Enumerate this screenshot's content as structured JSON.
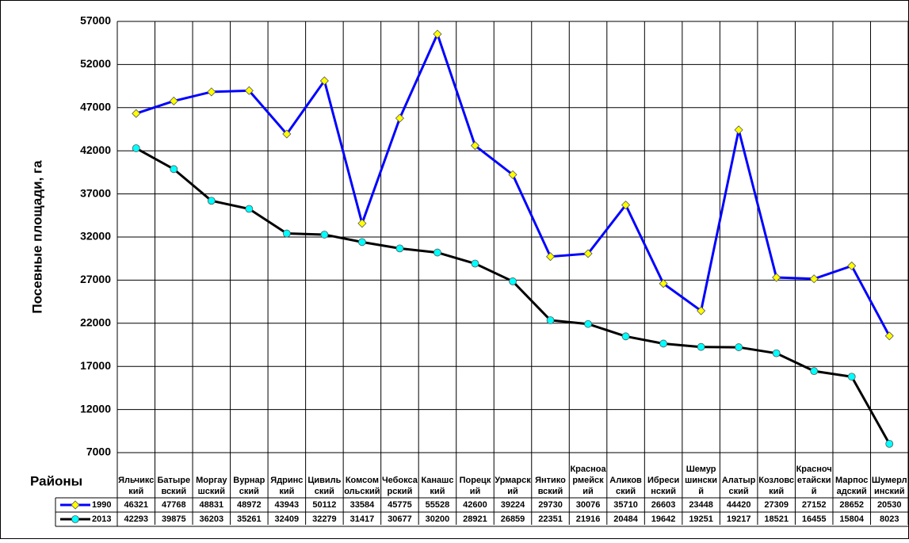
{
  "chart_data": {
    "type": "line",
    "y_label": "Посевные площади, га",
    "x_label": "Районы",
    "categories": [
      "Яльчикский",
      "Батыревский",
      "Моргаушский",
      "Вурнарский",
      "Ядринский",
      "Цивильский",
      "Комсомольский",
      "Чебоксарский",
      "Канашский",
      "Порецкий",
      "Урмарский",
      "Янтиковский",
      "Красноармейский",
      "Аликовский",
      "Ибресинский",
      "Шемуршинский",
      "Алатырский",
      "Козловский",
      "Красночетайский",
      "Марпосадский",
      "Шумерлинский"
    ],
    "series": [
      {
        "name": "1990",
        "color": "#0000ff",
        "marker_color": "#ffff00",
        "marker": "diamond",
        "values": [
          46321,
          47768,
          48831,
          48972,
          43943,
          50112,
          33584,
          45775,
          55528,
          42600,
          39224,
          29730,
          30076,
          35710,
          26603,
          23448,
          44420,
          27309,
          27152,
          28652,
          20530
        ]
      },
      {
        "name": "2013",
        "color": "#000000",
        "marker_color": "#00ffff",
        "marker": "circle",
        "values": [
          42293,
          39875,
          36203,
          35261,
          32409,
          32279,
          31417,
          30677,
          30200,
          28921,
          26859,
          22351,
          21916,
          20484,
          19642,
          19251,
          19217,
          18521,
          16455,
          15804,
          8023
        ]
      }
    ],
    "ylim": [
      7000,
      57000
    ],
    "yticks": [
      7000,
      12000,
      17000,
      22000,
      27000,
      32000,
      37000,
      42000,
      47000,
      52000,
      57000
    ],
    "grid": true
  }
}
